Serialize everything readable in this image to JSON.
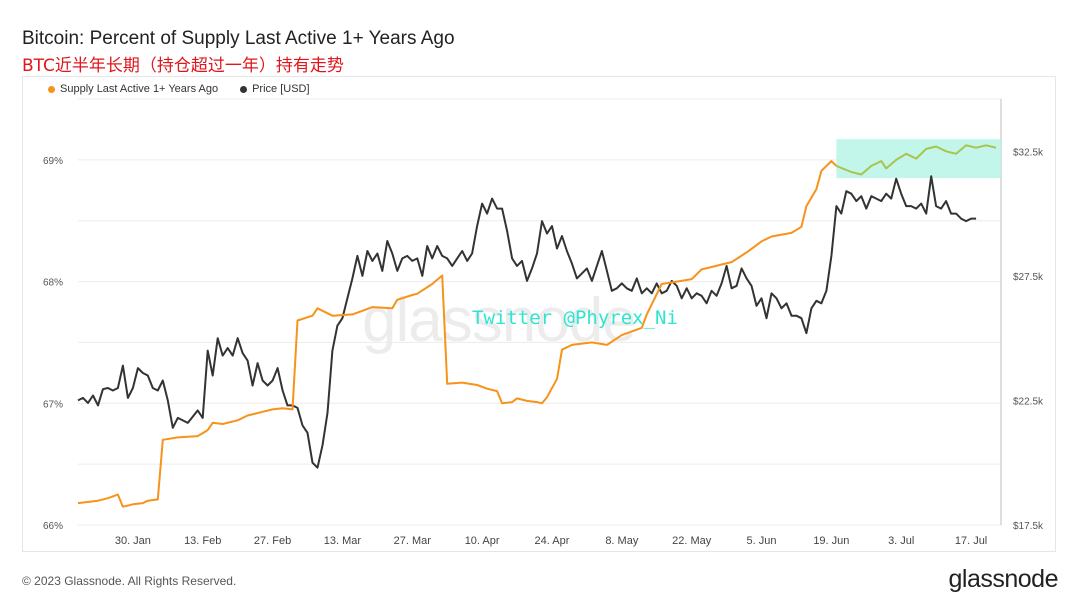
{
  "title": "Bitcoin: Percent of Supply Last Active 1+ Years Ago",
  "subtitle": "BTC近半年长期（持仓超过一年）持有走势",
  "footer": "© 2023 Glassnode. All Rights Reserved.",
  "brand": "glassnode",
  "watermark": "glassnode",
  "annotation": "Twitter @Phyrex_Ni",
  "chart_data": {
    "type": "line",
    "x_ticks": [
      "30. Jan",
      "13. Feb",
      "27. Feb",
      "13. Mar",
      "27. Mar",
      "10. Apr",
      "24. Apr",
      "8. May",
      "22. May",
      "5. Jun",
      "19. Jun",
      "3. Jul",
      "17. Jul"
    ],
    "x_days": [
      30,
      44,
      58,
      72,
      86,
      100,
      114,
      128,
      142,
      156,
      170,
      184,
      198
    ],
    "x_range": [
      19,
      204
    ],
    "y_left": {
      "ticks": [
        "66%",
        "67%",
        "68%",
        "69%"
      ],
      "values": [
        66,
        67,
        68,
        69
      ],
      "range": [
        66,
        69.5
      ]
    },
    "y_right": {
      "ticks": [
        "$17.5k",
        "$22.5k",
        "$27.5k",
        "$32.5k"
      ],
      "values": [
        17500,
        22500,
        27500,
        32500
      ],
      "range": [
        17500,
        34600
      ]
    },
    "grid": true,
    "legend_position": "top-left",
    "highlight_region": {
      "x": [
        171,
        204
      ],
      "y_left": [
        68.85,
        69.17
      ]
    },
    "series": [
      {
        "name": "Supply Last Active 1+ Years Ago",
        "axis": "left",
        "color": "#f7931a",
        "recent_color": "#a9c44a",
        "points": [
          [
            19,
            66.18
          ],
          [
            23,
            66.2
          ],
          [
            25,
            66.22
          ],
          [
            27,
            66.25
          ],
          [
            28,
            66.15
          ],
          [
            30,
            66.17
          ],
          [
            32,
            66.18
          ],
          [
            33,
            66.2
          ],
          [
            35,
            66.21
          ],
          [
            36,
            66.7
          ],
          [
            39,
            66.72
          ],
          [
            43,
            66.73
          ],
          [
            45,
            66.78
          ],
          [
            46,
            66.84
          ],
          [
            48,
            66.83
          ],
          [
            51,
            66.86
          ],
          [
            53,
            66.9
          ],
          [
            56,
            66.93
          ],
          [
            58,
            66.95
          ],
          [
            60,
            66.96
          ],
          [
            62,
            66.95
          ],
          [
            63,
            67.68
          ],
          [
            66,
            67.72
          ],
          [
            67,
            67.78
          ],
          [
            70,
            67.72
          ],
          [
            74,
            67.73
          ],
          [
            76,
            67.76
          ],
          [
            78,
            67.79
          ],
          [
            82,
            67.78
          ],
          [
            83,
            67.85
          ],
          [
            86,
            67.89
          ],
          [
            87,
            67.9
          ],
          [
            90,
            67.98
          ],
          [
            92,
            68.05
          ],
          [
            93,
            67.16
          ],
          [
            96,
            67.17
          ],
          [
            99,
            67.15
          ],
          [
            101,
            67.12
          ],
          [
            103,
            67.1
          ],
          [
            104,
            67.0
          ],
          [
            106,
            67.01
          ],
          [
            107,
            67.04
          ],
          [
            109,
            67.02
          ],
          [
            111,
            67.01
          ],
          [
            112,
            67.0
          ],
          [
            113,
            67.05
          ],
          [
            115,
            67.2
          ],
          [
            116,
            67.44
          ],
          [
            118,
            67.48
          ],
          [
            122,
            67.5
          ],
          [
            125,
            67.48
          ],
          [
            128,
            67.56
          ],
          [
            132,
            67.62
          ],
          [
            133,
            67.73
          ],
          [
            136,
            67.98
          ],
          [
            139,
            68.0
          ],
          [
            142,
            68.02
          ],
          [
            144,
            68.1
          ],
          [
            146,
            68.12
          ],
          [
            148,
            68.14
          ],
          [
            150,
            68.16
          ],
          [
            153,
            68.24
          ],
          [
            156,
            68.33
          ],
          [
            158,
            68.37
          ],
          [
            162,
            68.4
          ],
          [
            164,
            68.45
          ],
          [
            165,
            68.62
          ],
          [
            167,
            68.76
          ],
          [
            168,
            68.91
          ],
          [
            170,
            68.99
          ],
          [
            171,
            68.95
          ],
          [
            174,
            68.9
          ],
          [
            176,
            68.88
          ],
          [
            178,
            68.95
          ],
          [
            180,
            68.99
          ],
          [
            181,
            68.93
          ],
          [
            183,
            69.0
          ],
          [
            185,
            69.05
          ],
          [
            187,
            69.01
          ],
          [
            189,
            69.09
          ],
          [
            191,
            69.11
          ],
          [
            193,
            69.07
          ],
          [
            195,
            69.05
          ],
          [
            197,
            69.12
          ],
          [
            199,
            69.1
          ],
          [
            201,
            69.12
          ],
          [
            203,
            69.1
          ]
        ]
      },
      {
        "name": "Price [USD]",
        "axis": "right",
        "color": "#333333",
        "points": [
          [
            19,
            22500
          ],
          [
            20,
            22600
          ],
          [
            21,
            22400
          ],
          [
            22,
            22700
          ],
          [
            23,
            22300
          ],
          [
            24,
            22950
          ],
          [
            25,
            23000
          ],
          [
            26,
            22900
          ],
          [
            27,
            23000
          ],
          [
            28,
            23900
          ],
          [
            29,
            22600
          ],
          [
            30,
            23000
          ],
          [
            31,
            23800
          ],
          [
            32,
            23600
          ],
          [
            33,
            23500
          ],
          [
            34,
            23000
          ],
          [
            35,
            22900
          ],
          [
            36,
            23300
          ],
          [
            37,
            22500
          ],
          [
            38,
            21400
          ],
          [
            39,
            21800
          ],
          [
            40,
            21700
          ],
          [
            41,
            21600
          ],
          [
            42,
            21850
          ],
          [
            43,
            22100
          ],
          [
            44,
            21800
          ],
          [
            45,
            24500
          ],
          [
            46,
            23500
          ],
          [
            47,
            25000
          ],
          [
            48,
            24300
          ],
          [
            49,
            24600
          ],
          [
            50,
            24300
          ],
          [
            51,
            25000
          ],
          [
            52,
            24400
          ],
          [
            53,
            24100
          ],
          [
            54,
            23100
          ],
          [
            55,
            24000
          ],
          [
            56,
            23300
          ],
          [
            57,
            23100
          ],
          [
            58,
            23300
          ],
          [
            59,
            23800
          ],
          [
            60,
            22900
          ],
          [
            61,
            22300
          ],
          [
            62,
            22300
          ],
          [
            63,
            22200
          ],
          [
            64,
            21500
          ],
          [
            65,
            21200
          ],
          [
            66,
            20000
          ],
          [
            67,
            19800
          ],
          [
            68,
            20700
          ],
          [
            69,
            22000
          ],
          [
            70,
            24500
          ],
          [
            71,
            25500
          ],
          [
            72,
            25800
          ],
          [
            73,
            26600
          ],
          [
            74,
            27400
          ],
          [
            75,
            28300
          ],
          [
            76,
            27500
          ],
          [
            77,
            28500
          ],
          [
            78,
            28100
          ],
          [
            79,
            28400
          ],
          [
            80,
            27700
          ],
          [
            81,
            28900
          ],
          [
            82,
            28400
          ],
          [
            83,
            27700
          ],
          [
            84,
            28200
          ],
          [
            85,
            28300
          ],
          [
            86,
            28100
          ],
          [
            87,
            28200
          ],
          [
            88,
            27500
          ],
          [
            89,
            28700
          ],
          [
            90,
            28200
          ],
          [
            91,
            28700
          ],
          [
            92,
            28300
          ],
          [
            93,
            28200
          ],
          [
            94,
            27900
          ],
          [
            95,
            28200
          ],
          [
            96,
            28500
          ],
          [
            97,
            28100
          ],
          [
            98,
            28400
          ],
          [
            99,
            29500
          ],
          [
            100,
            30400
          ],
          [
            101,
            30000
          ],
          [
            102,
            30600
          ],
          [
            103,
            30200
          ],
          [
            104,
            30200
          ],
          [
            105,
            29300
          ],
          [
            106,
            28200
          ],
          [
            107,
            27900
          ],
          [
            108,
            28100
          ],
          [
            109,
            27300
          ],
          [
            110,
            27800
          ],
          [
            111,
            28400
          ],
          [
            112,
            29700
          ],
          [
            113,
            29200
          ],
          [
            114,
            29500
          ],
          [
            115,
            28600
          ],
          [
            116,
            29100
          ],
          [
            117,
            28500
          ],
          [
            118,
            28000
          ],
          [
            119,
            27400
          ],
          [
            120,
            27600
          ],
          [
            121,
            27800
          ],
          [
            122,
            27300
          ],
          [
            123,
            27900
          ],
          [
            124,
            28500
          ],
          [
            125,
            27700
          ],
          [
            126,
            26900
          ],
          [
            127,
            27000
          ],
          [
            128,
            27200
          ],
          [
            129,
            27000
          ],
          [
            130,
            26900
          ],
          [
            131,
            27400
          ],
          [
            132,
            26800
          ],
          [
            133,
            27000
          ],
          [
            134,
            26800
          ],
          [
            135,
            27200
          ],
          [
            136,
            26800
          ],
          [
            137,
            26900
          ],
          [
            138,
            27300
          ],
          [
            139,
            27100
          ],
          [
            140,
            26600
          ],
          [
            141,
            27000
          ],
          [
            142,
            26600
          ],
          [
            143,
            26800
          ],
          [
            144,
            26700
          ],
          [
            145,
            26400
          ],
          [
            146,
            26900
          ],
          [
            147,
            26700
          ],
          [
            148,
            27200
          ],
          [
            149,
            27900
          ],
          [
            150,
            27000
          ],
          [
            151,
            27100
          ],
          [
            152,
            27800
          ],
          [
            153,
            27400
          ],
          [
            154,
            27100
          ],
          [
            155,
            26300
          ],
          [
            156,
            26600
          ],
          [
            157,
            25800
          ],
          [
            158,
            26800
          ],
          [
            159,
            26600
          ],
          [
            160,
            26200
          ],
          [
            161,
            26400
          ],
          [
            162,
            25900
          ],
          [
            163,
            25900
          ],
          [
            164,
            25800
          ],
          [
            165,
            25200
          ],
          [
            166,
            26200
          ],
          [
            167,
            26500
          ],
          [
            168,
            26400
          ],
          [
            169,
            26900
          ],
          [
            170,
            28300
          ],
          [
            171,
            30300
          ],
          [
            172,
            30000
          ],
          [
            173,
            30900
          ],
          [
            174,
            30800
          ],
          [
            175,
            30500
          ],
          [
            176,
            30700
          ],
          [
            177,
            30200
          ],
          [
            178,
            30700
          ],
          [
            179,
            30600
          ],
          [
            180,
            30500
          ],
          [
            181,
            30800
          ],
          [
            182,
            30600
          ],
          [
            183,
            31400
          ],
          [
            184,
            30800
          ],
          [
            185,
            30300
          ],
          [
            186,
            30300
          ],
          [
            187,
            30200
          ],
          [
            188,
            30400
          ],
          [
            189,
            30000
          ],
          [
            190,
            31500
          ],
          [
            191,
            30300
          ],
          [
            192,
            30200
          ],
          [
            193,
            30500
          ],
          [
            194,
            30000
          ],
          [
            195,
            30000
          ],
          [
            196,
            29800
          ],
          [
            197,
            29700
          ],
          [
            198,
            29800
          ],
          [
            199,
            29800
          ]
        ]
      }
    ]
  }
}
